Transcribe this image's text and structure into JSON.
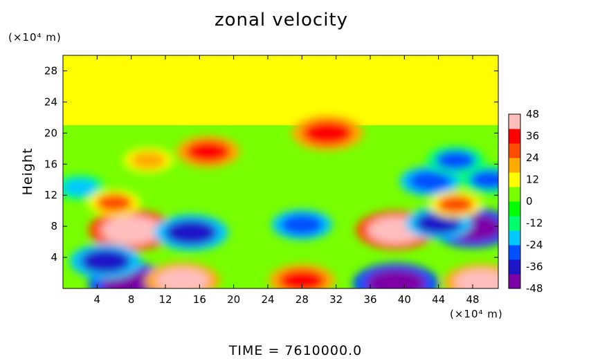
{
  "chart_data": {
    "type": "heatmap",
    "title": "zonal velocity",
    "ylabel": "Height",
    "xlabel": "",
    "x_unit": "(×10⁴ m)",
    "y_unit": "(×10⁴ m)",
    "xlim": [
      0,
      51
    ],
    "ylim": [
      0,
      30
    ],
    "x_ticks": [
      4,
      8,
      12,
      16,
      20,
      24,
      28,
      32,
      36,
      40,
      44,
      48
    ],
    "y_ticks": [
      4,
      8,
      12,
      16,
      20,
      24,
      28
    ],
    "colorbar": {
      "min": -48,
      "max": 48,
      "ticks": [
        48,
        36,
        24,
        12,
        0,
        -12,
        -24,
        -36,
        -48
      ],
      "colors": [
        "#7b00a6",
        "#1e14c8",
        "#0050ff",
        "#00c8ff",
        "#00ff6e",
        "#00ff00",
        "#78ff00",
        "#ffff00",
        "#ffaa00",
        "#ff4b00",
        "#ff0000",
        "#ffbebe"
      ]
    },
    "features": [
      {
        "x": 8,
        "y": 7.5,
        "value": 48
      },
      {
        "x": 39,
        "y": 7.5,
        "value": 44
      },
      {
        "x": 15,
        "y": 7.2,
        "value": -40
      },
      {
        "x": 28,
        "y": 8.2,
        "value": -30
      },
      {
        "x": 8,
        "y": 0.6,
        "value": -48
      },
      {
        "x": 39,
        "y": 0.6,
        "value": -48
      },
      {
        "x": 17,
        "y": 17.6,
        "value": 32
      },
      {
        "x": 31,
        "y": 20.0,
        "value": 38
      },
      {
        "x": 43,
        "y": 13.8,
        "value": -30
      },
      {
        "x": 50,
        "y": 14.0,
        "value": -28
      },
      {
        "x": 48,
        "y": 7.8,
        "value": -46
      },
      {
        "x": 44,
        "y": 8.4,
        "value": -34
      },
      {
        "x": 2,
        "y": 13.0,
        "value": -22
      },
      {
        "x": 46,
        "y": 16.5,
        "value": -28
      },
      {
        "x": 14,
        "y": 1.0,
        "value": 40
      },
      {
        "x": 28,
        "y": 1.0,
        "value": 34
      },
      {
        "x": 49,
        "y": 0.8,
        "value": 40
      },
      {
        "x": 5,
        "y": 3.5,
        "value": -38
      },
      {
        "x": 46,
        "y": 10.8,
        "value": 24
      },
      {
        "x": 10,
        "y": 16.5,
        "value": 22
      },
      {
        "x": 6,
        "y": 11.0,
        "value": 24
      }
    ]
  },
  "footer": "TIME  =  7610000.0"
}
